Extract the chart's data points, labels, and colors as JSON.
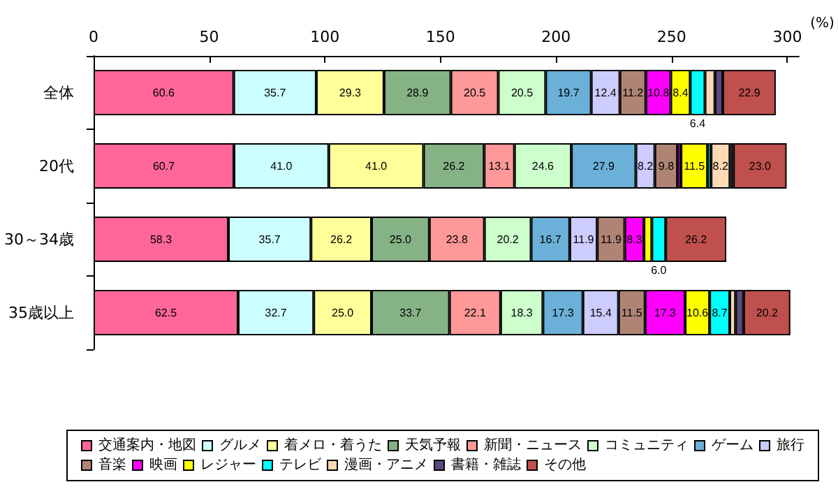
{
  "chart_data": {
    "type": "bar",
    "orientation": "horizontal",
    "stacked": true,
    "xlabel": "(%)",
    "categories": [
      "全体",
      "20代",
      "30～34歳",
      "35歳以上"
    ],
    "xlim": [
      0,
      305
    ],
    "xticks": [
      0,
      50,
      100,
      150,
      200,
      250,
      300
    ],
    "grid": false,
    "legend": "bottom",
    "series": [
      {
        "name": "交通案内・地図",
        "color": "#ff6699",
        "values": [
          60.6,
          60.7,
          58.3,
          62.5
        ],
        "value_labels": [
          "60.6",
          "60.7",
          "58.3",
          "62.5"
        ]
      },
      {
        "name": "グルメ",
        "color": "#ccffff",
        "values": [
          35.7,
          41.0,
          35.7,
          32.7
        ],
        "value_labels": [
          "35.7",
          "41.0",
          "35.7",
          "32.7"
        ]
      },
      {
        "name": "着メロ・着うた",
        "color": "#ffff99",
        "values": [
          29.3,
          41.0,
          26.2,
          25.0
        ],
        "value_labels": [
          "29.3",
          "41.0",
          "26.2",
          "25.0"
        ]
      },
      {
        "name": "天気予報",
        "color": "#86b386",
        "values": [
          28.9,
          26.2,
          25.0,
          33.7
        ],
        "value_labels": [
          "28.9",
          "26.2",
          "25.0",
          "33.7"
        ]
      },
      {
        "name": "新聞・ニュース",
        "color": "#ff9999",
        "values": [
          20.5,
          13.1,
          23.8,
          22.1
        ],
        "value_labels": [
          "20.5",
          "13.1",
          "23.8",
          "22.1"
        ]
      },
      {
        "name": "コミュニティ",
        "color": "#ccffcc",
        "values": [
          20.5,
          24.6,
          20.2,
          18.3
        ],
        "value_labels": [
          "20.5",
          "24.6",
          "20.2",
          "18.3"
        ]
      },
      {
        "name": "ゲーム",
        "color": "#6bb0d8",
        "values": [
          19.7,
          27.9,
          16.7,
          17.3
        ],
        "value_labels": [
          "19.7",
          "27.9",
          "16.7",
          "17.3"
        ]
      },
      {
        "name": "旅行",
        "color": "#ccccff",
        "values": [
          12.4,
          8.2,
          11.9,
          15.4
        ],
        "value_labels": [
          "12.4",
          "8.2",
          "11.9",
          "15.4"
        ]
      },
      {
        "name": "音楽",
        "color": "#b08474",
        "values": [
          11.2,
          9.8,
          11.9,
          11.5
        ],
        "value_labels": [
          "11.2",
          "9.8",
          "11.9",
          "11.5"
        ]
      },
      {
        "name": "映画",
        "color": "#ff00ff",
        "values": [
          10.8,
          1.5,
          8.3,
          17.3
        ],
        "value_labels": [
          "10.8",
          null,
          "8.3",
          "17.3"
        ]
      },
      {
        "name": "レジャー",
        "color": "#ffff00",
        "values": [
          8.4,
          11.5,
          3.4,
          10.6
        ],
        "value_labels": [
          "8.4",
          "11.5",
          null,
          "10.6"
        ]
      },
      {
        "name": "テレビ",
        "color": "#00ffff",
        "values": [
          6.4,
          1.5,
          6.0,
          8.7
        ],
        "value_labels": [
          "6.4",
          null,
          "6.0",
          "8.7"
        ]
      },
      {
        "name": "漫画・アニメ",
        "color": "#ffd9b3",
        "values": [
          4.3,
          8.2,
          null,
          2.5
        ],
        "value_labels": [
          null,
          "8.2",
          null,
          null
        ]
      },
      {
        "name": "書籍・雑誌",
        "color": "#5c4a7d",
        "values": [
          3.4,
          1.5,
          null,
          3.5
        ],
        "value_labels": [
          null,
          null,
          null,
          null
        ]
      },
      {
        "name": "その他",
        "color": "#c0504d",
        "values": [
          22.9,
          23.0,
          26.2,
          20.2
        ],
        "value_labels": [
          "22.9",
          "23.0",
          "26.2",
          "20.2"
        ]
      }
    ]
  }
}
